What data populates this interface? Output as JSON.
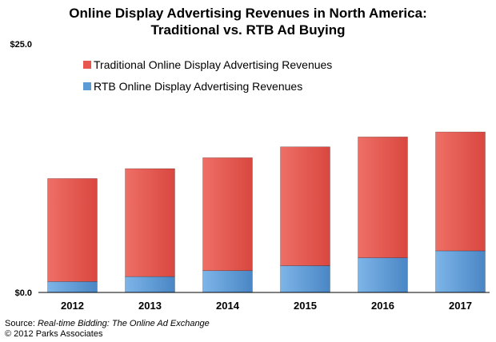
{
  "chart_data": {
    "type": "bar",
    "stacked": true,
    "title_line1": "Online Display Advertising Revenues in North America:",
    "title_line2": "Traditional vs. RTB Ad Buying",
    "categories": [
      "2012",
      "2013",
      "2014",
      "2015",
      "2016",
      "2017"
    ],
    "series": [
      {
        "name": "RTB Online Display Advertising Revenues",
        "color": "#5b9bd5",
        "values": [
          1.1,
          1.6,
          2.2,
          2.7,
          3.5,
          4.2
        ]
      },
      {
        "name": "Traditional Online Display Advertising Revenues",
        "color": "#e8574f",
        "values": [
          10.4,
          10.9,
          11.4,
          12.0,
          12.2,
          12.0
        ]
      }
    ],
    "ylim": [
      0,
      25
    ],
    "y_tick_labels": [
      "$0.0",
      "$25.0"
    ],
    "grid": false,
    "legend": "top-left"
  },
  "source": {
    "prefix": "Source: ",
    "title": "Real-time Bidding: The Online Ad Exchange",
    "copyright": "© 2012 Parks Associates"
  }
}
